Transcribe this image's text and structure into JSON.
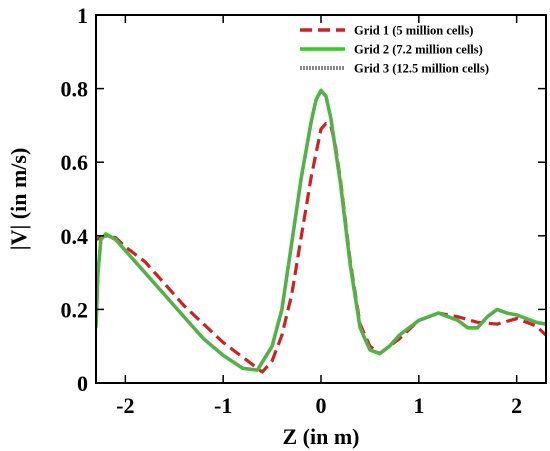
{
  "chart_data": {
    "type": "line",
    "title": "",
    "xlabel": "Z (in m)",
    "ylabel": "|V| (in m/s)",
    "xlim": [
      -2.3,
      2.3
    ],
    "ylim": [
      0,
      1
    ],
    "x_ticks": [
      -2,
      -1,
      0,
      1,
      2
    ],
    "x_tick_labels": [
      "-2",
      "-1",
      "0",
      "1",
      "2"
    ],
    "y_ticks": [
      0,
      0.2,
      0.4,
      0.6,
      0.8,
      1
    ],
    "y_tick_labels": [
      "0",
      "0.2",
      "0.4",
      "0.6",
      "0.8",
      "1"
    ],
    "grid": false,
    "legend": {
      "position": "top-right"
    },
    "series": [
      {
        "name": "Grid 1 (5 million cells)",
        "color": "#cc2222",
        "style": "dashed",
        "x": [
          -2.3,
          -2.2,
          -2.1,
          -2.0,
          -1.8,
          -1.6,
          -1.4,
          -1.2,
          -1.0,
          -0.8,
          -0.6,
          -0.5,
          -0.4,
          -0.3,
          -0.2,
          -0.1,
          0.0,
          0.05,
          0.1,
          0.15,
          0.2,
          0.3,
          0.4,
          0.5,
          0.6,
          0.7,
          0.8,
          1.0,
          1.2,
          1.4,
          1.6,
          1.8,
          2.0,
          2.2,
          2.3
        ],
        "y": [
          0.39,
          0.4,
          0.395,
          0.37,
          0.33,
          0.27,
          0.21,
          0.16,
          0.11,
          0.07,
          0.03,
          0.06,
          0.13,
          0.24,
          0.4,
          0.56,
          0.69,
          0.705,
          0.7,
          0.64,
          0.55,
          0.33,
          0.16,
          0.1,
          0.08,
          0.1,
          0.12,
          0.17,
          0.19,
          0.18,
          0.165,
          0.16,
          0.175,
          0.155,
          0.13
        ]
      },
      {
        "name": "Grid 2 (7.2 million cells)",
        "color": "#33cc22",
        "style": "solid",
        "x": [
          -2.3,
          -2.28,
          -2.25,
          -2.2,
          -2.1,
          -2.0,
          -1.8,
          -1.6,
          -1.4,
          -1.2,
          -1.0,
          -0.8,
          -0.65,
          -0.5,
          -0.4,
          -0.3,
          -0.2,
          -0.1,
          -0.05,
          0.0,
          0.05,
          0.1,
          0.2,
          0.3,
          0.4,
          0.5,
          0.6,
          0.7,
          0.8,
          1.0,
          1.2,
          1.4,
          1.5,
          1.6,
          1.7,
          1.8,
          1.9,
          2.0,
          2.1,
          2.2,
          2.3
        ],
        "y": [
          0.15,
          0.3,
          0.39,
          0.405,
          0.39,
          0.36,
          0.3,
          0.24,
          0.18,
          0.12,
          0.075,
          0.04,
          0.035,
          0.1,
          0.2,
          0.38,
          0.56,
          0.71,
          0.77,
          0.795,
          0.78,
          0.72,
          0.54,
          0.32,
          0.15,
          0.09,
          0.08,
          0.1,
          0.13,
          0.17,
          0.19,
          0.17,
          0.15,
          0.15,
          0.18,
          0.2,
          0.19,
          0.185,
          0.175,
          0.165,
          0.16
        ]
      },
      {
        "name": "Grid 3 (12.5 million cells)",
        "color": "#888888",
        "style": "solid",
        "x": [
          -2.3,
          -2.28,
          -2.25,
          -2.2,
          -2.1,
          -2.0,
          -1.8,
          -1.6,
          -1.4,
          -1.2,
          -1.0,
          -0.8,
          -0.65,
          -0.5,
          -0.4,
          -0.3,
          -0.2,
          -0.1,
          -0.05,
          0.0,
          0.05,
          0.1,
          0.2,
          0.3,
          0.4,
          0.5,
          0.6,
          0.7,
          0.8,
          1.0,
          1.2,
          1.4,
          1.5,
          1.6,
          1.7,
          1.8,
          1.9,
          2.0,
          2.1,
          2.2,
          2.3
        ],
        "y": [
          0.15,
          0.3,
          0.39,
          0.4,
          0.388,
          0.358,
          0.298,
          0.238,
          0.178,
          0.12,
          0.075,
          0.042,
          0.037,
          0.1,
          0.2,
          0.375,
          0.555,
          0.705,
          0.765,
          0.79,
          0.775,
          0.715,
          0.535,
          0.318,
          0.15,
          0.09,
          0.082,
          0.1,
          0.13,
          0.168,
          0.188,
          0.17,
          0.152,
          0.152,
          0.18,
          0.198,
          0.19,
          0.183,
          0.173,
          0.163,
          0.158
        ]
      }
    ]
  }
}
